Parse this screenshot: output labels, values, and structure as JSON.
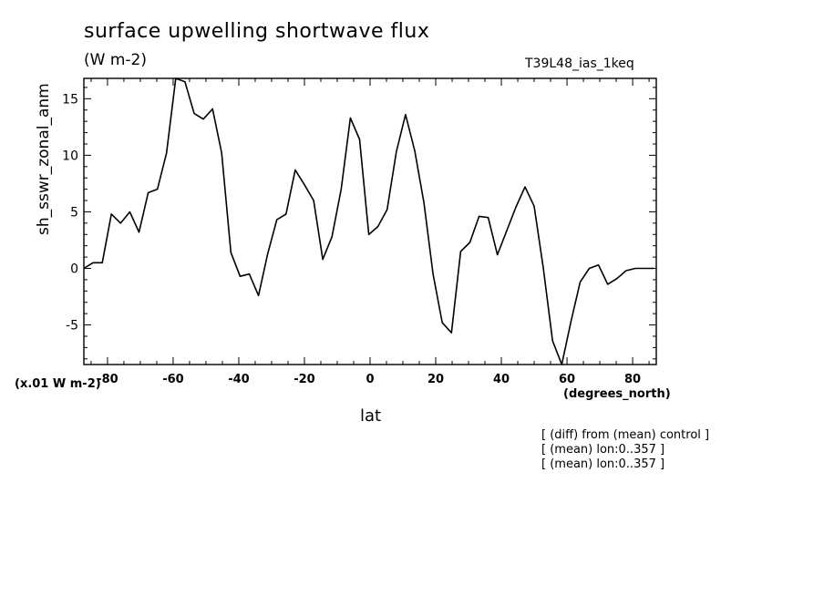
{
  "header": {
    "title": "surface upwelling shortwave flux",
    "units": "(W m-2)",
    "run": "T39L48_ias_1keq"
  },
  "axes": {
    "scale_note": "(x.01 W m-2)",
    "x_units": "(degrees_north)",
    "x_label": "lat",
    "y_label": "sh_sswr_zonal_anm"
  },
  "notes": [
    "[ (diff) from (mean) control ]",
    "[ (mean) lon:0..357 ]",
    "[ (mean) lon:0..357 ]"
  ],
  "chart_data": {
    "type": "line",
    "title": "surface upwelling shortwave flux",
    "xlabel": "lat",
    "ylabel": "sh_sswr_zonal_anm",
    "xlim": [
      -87.2,
      87.2
    ],
    "ylim": [
      -8.5,
      16.8
    ],
    "grid": false,
    "x_ticks": [
      -80,
      -60,
      -40,
      -20,
      0,
      20,
      40,
      60,
      80
    ],
    "x_tick_labels": [
      "-80",
      "-60",
      "-40",
      "-20",
      "0",
      "20",
      "40",
      "60",
      "80"
    ],
    "y_ticks": [
      -5,
      0,
      5,
      10,
      15
    ],
    "y_tick_labels": [
      "-5",
      "0",
      "5",
      "10",
      "15"
    ],
    "series": [
      {
        "color": "#000000",
        "x": [
          -87.2,
          -84.4,
          -81.6,
          -78.8,
          -76.0,
          -73.2,
          -70.4,
          -67.6,
          -64.8,
          -62.0,
          -59.2,
          -56.4,
          -53.6,
          -50.8,
          -48.0,
          -45.2,
          -42.4,
          -39.6,
          -36.8,
          -34.0,
          -31.2,
          -28.4,
          -25.6,
          -22.8,
          -20.0,
          -17.2,
          -14.4,
          -11.6,
          -8.8,
          -6.0,
          -3.2,
          -0.4,
          2.4,
          5.2,
          8.0,
          10.8,
          13.6,
          16.4,
          19.2,
          22.0,
          24.8,
          27.6,
          30.4,
          33.2,
          36.0,
          38.8,
          41.6,
          44.4,
          47.2,
          50.0,
          52.8,
          55.6,
          58.4,
          61.2,
          64.0,
          66.8,
          69.6,
          72.4,
          75.2,
          78.0,
          80.8,
          83.6,
          86.4
        ],
        "y": [
          0.0,
          0.5,
          0.5,
          4.8,
          4.0,
          5.0,
          3.2,
          6.7,
          7.0,
          10.2,
          16.8,
          16.5,
          13.7,
          13.2,
          14.1,
          10.2,
          1.4,
          -0.7,
          -0.5,
          -2.4,
          1.3,
          4.3,
          4.8,
          8.7,
          7.4,
          6.0,
          0.8,
          2.8,
          7.0,
          13.3,
          11.4,
          3.0,
          3.7,
          5.2,
          10.3,
          13.6,
          10.4,
          5.8,
          -0.5,
          -4.8,
          -5.7,
          1.5,
          2.3,
          4.6,
          4.5,
          1.2,
          3.3,
          5.4,
          7.2,
          5.5,
          0.0,
          -6.4,
          -8.5,
          -4.7,
          -1.2,
          0.0,
          0.3,
          -1.4,
          -0.9,
          -0.2,
          0.0,
          0.0,
          0.0
        ]
      }
    ]
  }
}
